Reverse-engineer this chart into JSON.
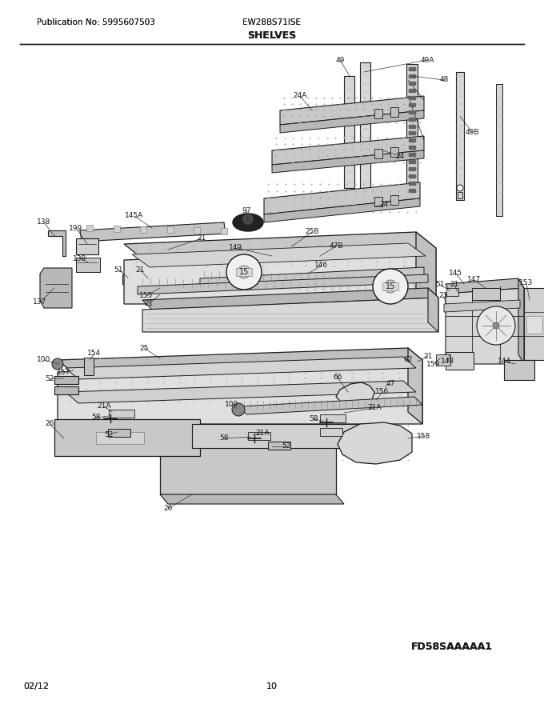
{
  "pub_no": "Publication No: 5995607503",
  "model": "EW28BS71ISE",
  "title": "SHELVES",
  "footer_left": "02/12",
  "footer_center": "10",
  "footer_right": "FD58SAAAAA1",
  "bg_color": "#ffffff"
}
